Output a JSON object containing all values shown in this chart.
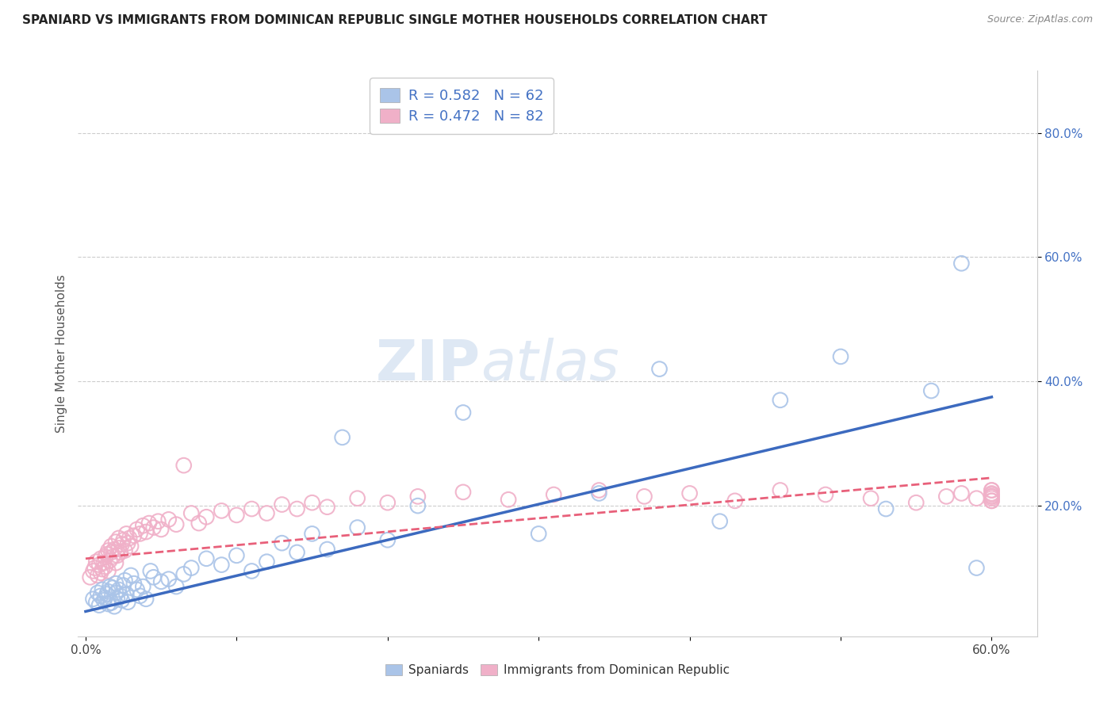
{
  "title": "SPANIARD VS IMMIGRANTS FROM DOMINICAN REPUBLIC SINGLE MOTHER HOUSEHOLDS CORRELATION CHART",
  "source": "Source: ZipAtlas.com",
  "ylabel": "Single Mother Households",
  "xlim": [
    0.0,
    0.6
  ],
  "ylim": [
    0.0,
    0.88
  ],
  "spaniard_R": "0.582",
  "spaniard_N": "62",
  "dominican_R": "0.472",
  "dominican_N": "82",
  "spaniard_color": "#aac4e8",
  "dominican_color": "#f0b0c8",
  "spaniard_line_color": "#3c6abf",
  "dominican_line_color": "#e8607a",
  "legend_text_color": "#4472c4",
  "tick_color": "#4472c4",
  "watermark_zip": "ZIP",
  "watermark_atlas": "atlas",
  "spaniard_line_x0": 0.0,
  "spaniard_line_y0": 0.03,
  "spaniard_line_x1": 0.6,
  "spaniard_line_y1": 0.375,
  "dominican_line_x0": 0.0,
  "dominican_line_y0": 0.115,
  "dominican_line_x1": 0.6,
  "dominican_line_y1": 0.245,
  "spaniard_x": [
    0.005,
    0.007,
    0.008,
    0.009,
    0.01,
    0.011,
    0.012,
    0.013,
    0.014,
    0.015,
    0.015,
    0.016,
    0.017,
    0.018,
    0.019,
    0.02,
    0.02,
    0.021,
    0.022,
    0.023,
    0.024,
    0.025,
    0.026,
    0.027,
    0.028,
    0.03,
    0.032,
    0.034,
    0.036,
    0.038,
    0.04,
    0.043,
    0.045,
    0.05,
    0.055,
    0.06,
    0.065,
    0.07,
    0.08,
    0.09,
    0.1,
    0.11,
    0.12,
    0.13,
    0.14,
    0.15,
    0.16,
    0.17,
    0.18,
    0.2,
    0.22,
    0.25,
    0.3,
    0.34,
    0.38,
    0.42,
    0.46,
    0.5,
    0.53,
    0.56,
    0.58,
    0.59
  ],
  "spaniard_y": [
    0.05,
    0.045,
    0.06,
    0.04,
    0.055,
    0.065,
    0.048,
    0.052,
    0.058,
    0.042,
    0.062,
    0.07,
    0.044,
    0.068,
    0.038,
    0.06,
    0.075,
    0.05,
    0.065,
    0.055,
    0.048,
    0.072,
    0.08,
    0.058,
    0.045,
    0.088,
    0.075,
    0.065,
    0.055,
    0.07,
    0.05,
    0.095,
    0.085,
    0.078,
    0.082,
    0.07,
    0.09,
    0.1,
    0.115,
    0.105,
    0.12,
    0.095,
    0.11,
    0.14,
    0.125,
    0.155,
    0.13,
    0.31,
    0.165,
    0.145,
    0.2,
    0.35,
    0.155,
    0.22,
    0.42,
    0.175,
    0.37,
    0.44,
    0.195,
    0.385,
    0.59,
    0.1
  ],
  "dominican_x": [
    0.003,
    0.005,
    0.006,
    0.007,
    0.008,
    0.009,
    0.01,
    0.01,
    0.011,
    0.012,
    0.013,
    0.013,
    0.014,
    0.015,
    0.015,
    0.016,
    0.017,
    0.017,
    0.018,
    0.019,
    0.02,
    0.02,
    0.021,
    0.022,
    0.022,
    0.023,
    0.024,
    0.025,
    0.026,
    0.027,
    0.028,
    0.029,
    0.03,
    0.032,
    0.034,
    0.036,
    0.038,
    0.04,
    0.042,
    0.045,
    0.048,
    0.05,
    0.055,
    0.06,
    0.065,
    0.07,
    0.075,
    0.08,
    0.09,
    0.1,
    0.11,
    0.12,
    0.13,
    0.14,
    0.15,
    0.16,
    0.18,
    0.2,
    0.22,
    0.25,
    0.28,
    0.31,
    0.34,
    0.37,
    0.4,
    0.43,
    0.46,
    0.49,
    0.52,
    0.55,
    0.57,
    0.58,
    0.59,
    0.6,
    0.6,
    0.6,
    0.6,
    0.6,
    0.6,
    0.6,
    0.6,
    0.6
  ],
  "dominican_y": [
    0.085,
    0.095,
    0.1,
    0.11,
    0.088,
    0.105,
    0.092,
    0.115,
    0.098,
    0.108,
    0.118,
    0.102,
    0.122,
    0.095,
    0.128,
    0.112,
    0.125,
    0.135,
    0.118,
    0.13,
    0.108,
    0.142,
    0.12,
    0.132,
    0.148,
    0.125,
    0.138,
    0.145,
    0.128,
    0.155,
    0.14,
    0.148,
    0.135,
    0.152,
    0.162,
    0.155,
    0.168,
    0.158,
    0.172,
    0.165,
    0.175,
    0.162,
    0.178,
    0.17,
    0.265,
    0.188,
    0.172,
    0.182,
    0.192,
    0.185,
    0.195,
    0.188,
    0.202,
    0.195,
    0.205,
    0.198,
    0.212,
    0.205,
    0.215,
    0.222,
    0.21,
    0.218,
    0.225,
    0.215,
    0.22,
    0.208,
    0.225,
    0.218,
    0.212,
    0.205,
    0.215,
    0.22,
    0.212,
    0.225,
    0.215,
    0.208,
    0.218,
    0.212,
    0.22,
    0.215,
    0.208,
    0.225
  ]
}
